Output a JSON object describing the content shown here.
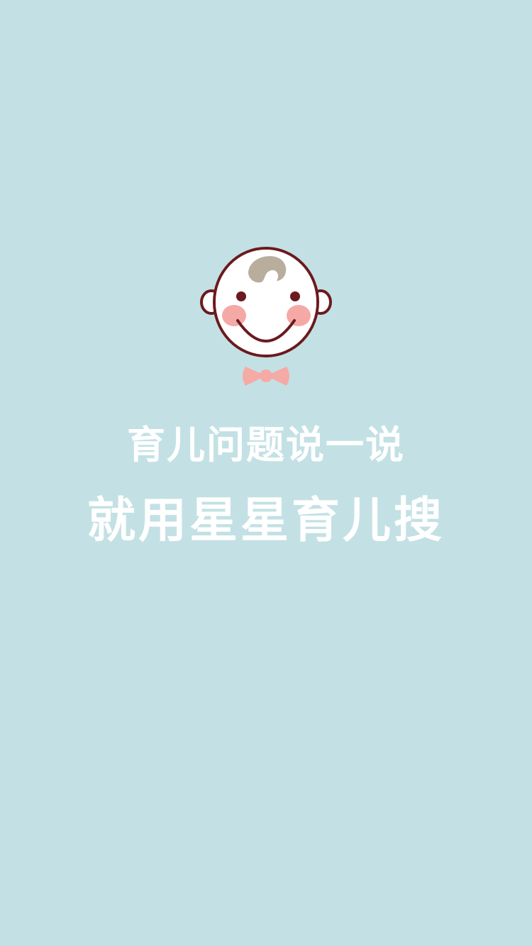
{
  "app": {
    "logo_icon": "baby-face-icon",
    "tagline_line1": "育儿问题说一说",
    "tagline_line2": "就用星星育儿搜"
  },
  "colors": {
    "background": "#c3e1e4",
    "text": "#ffffff",
    "face_outline": "#6b1a1f",
    "face_fill": "#ffffff",
    "cheek": "#f5a9a6",
    "hair": "#b9ad9c",
    "bowtie": "#f5aaa5"
  }
}
